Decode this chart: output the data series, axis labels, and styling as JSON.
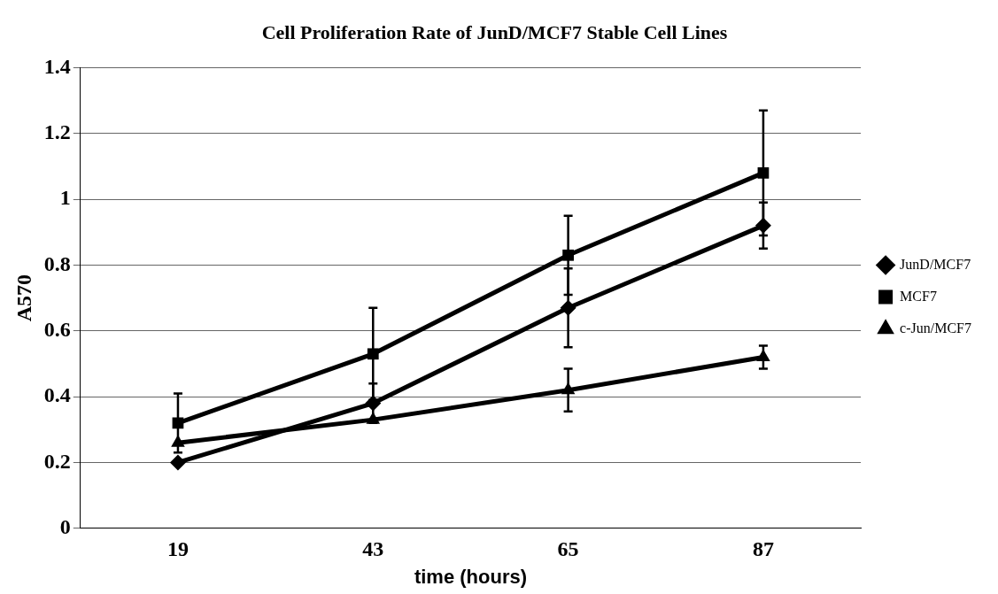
{
  "chart_data": {
    "type": "line",
    "title": "Cell Proliferation Rate of JunD/MCF7 Stable Cell Lines",
    "xlabel": "time (hours)",
    "ylabel": "A570",
    "categories": [
      "19",
      "43",
      "65",
      "87"
    ],
    "series": [
      {
        "name": "JunD/MCF7",
        "color": "#000000",
        "marker": "diamond",
        "values": [
          0.2,
          0.38,
          0.67,
          0.92
        ],
        "errors": [
          null,
          0.06,
          0.12,
          0.07
        ]
      },
      {
        "name": "MCF7",
        "color": "#000000",
        "marker": "square",
        "values": [
          0.32,
          0.53,
          0.83,
          1.08
        ],
        "errors": [
          0.09,
          0.14,
          0.12,
          0.19
        ]
      },
      {
        "name": "c-Jun/MCF7",
        "color": "#000000",
        "marker": "triangle",
        "values": [
          0.26,
          0.33,
          0.42,
          0.52
        ],
        "errors": [
          null,
          null,
          0.065,
          0.035
        ]
      }
    ],
    "ylim": [
      0,
      1.4
    ],
    "yticks": [
      0,
      0.2,
      0.4,
      0.6,
      0.8,
      1,
      1.2,
      1.4
    ],
    "grid": "y",
    "legend": "right",
    "line_style": "solid"
  }
}
